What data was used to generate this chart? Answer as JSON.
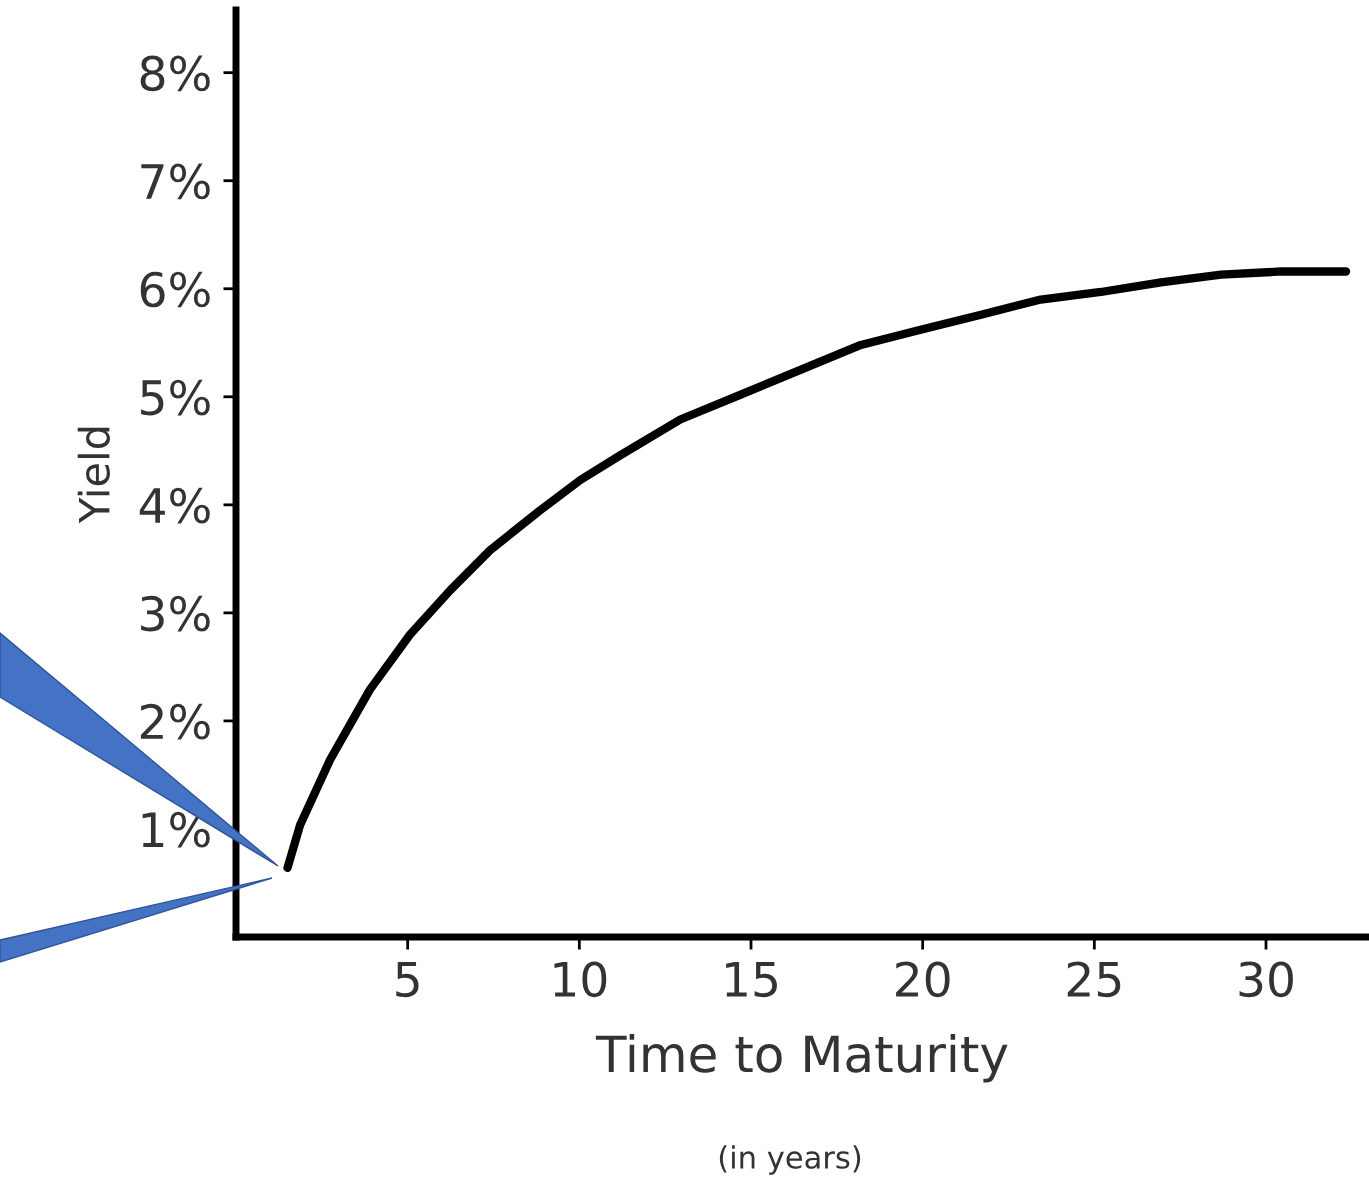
{
  "chart_data": {
    "type": "line",
    "xlabel": "Time to Maturity",
    "ylabel": "Yield",
    "annotations": [
      "(in years)"
    ],
    "x": [
      1.5,
      1.87,
      2.74,
      3.9,
      5.07,
      6.24,
      7.4,
      8.86,
      10.03,
      11.2,
      12.94,
      14.7,
      16.44,
      18.2,
      19.94,
      21.7,
      23.44,
      25.19,
      26.94,
      28.69,
      30.44,
      32.33
    ],
    "series": [
      {
        "color": "#000000",
        "values": [
          0.64,
          1.04,
          1.64,
          2.29,
          2.8,
          3.21,
          3.58,
          3.95,
          4.23,
          4.46,
          4.79,
          5.02,
          5.25,
          5.48,
          5.62,
          5.76,
          5.9,
          5.97,
          6.06,
          6.13,
          6.16,
          6.16
        ]
      }
    ],
    "xlim": [
      0,
      33
    ],
    "ylim": [
      0,
      8.58
    ],
    "xticks": [
      5,
      10,
      15,
      20,
      25,
      30
    ],
    "yticks": [
      {
        "value": 1,
        "label": "1%"
      },
      {
        "value": 2,
        "label": "2%"
      },
      {
        "value": 3,
        "label": "3%"
      },
      {
        "value": 4,
        "label": "4%"
      },
      {
        "value": 5,
        "label": "5%"
      },
      {
        "value": 6,
        "label": "6%"
      },
      {
        "value": 7,
        "label": "7%"
      },
      {
        "value": 8,
        "label": "8%"
      }
    ],
    "grid": false,
    "marker": "none",
    "line_style": "solid"
  }
}
